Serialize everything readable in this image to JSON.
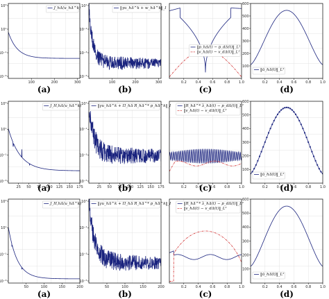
{
  "figure": {
    "row_labels": [
      [
        "(a)",
        "(b)",
        "(c)",
        "(d)"
      ],
      [
        "(a)",
        "(b)",
        "(c)",
        "(d)"
      ],
      [
        "(a)",
        "(b)",
        "(c)",
        "(d)"
      ]
    ]
  },
  "colors": {
    "primary": "#1a237e",
    "secondary": "#d32f2f",
    "frame": "#000000"
  },
  "chart_data": [
    {
      "type": "line",
      "row": 0,
      "col": 0,
      "log_y": true,
      "xlim": [
        0,
        310
      ],
      "ylim": [
        0.001,
        1000
      ],
      "xticks": [
        "100",
        "200",
        "300"
      ],
      "yticks": [
        "10³",
        "10¹",
        "10⁻¹",
        "10⁻³"
      ],
      "legend": [
        "J_hΔ(u_hΔ^k)"
      ],
      "legend_pos": "top-right",
      "series": [
        {
          "color": "primary",
          "style": "solid",
          "shape": "decay",
          "from": 5,
          "to": 0.04,
          "rate": 8,
          "noise": 0
        }
      ]
    },
    {
      "type": "line",
      "row": 0,
      "col": 1,
      "log_y": true,
      "xlim": [
        0,
        310
      ],
      "ylim": [
        1e-05,
        10
      ],
      "xticks": [
        "100",
        "200",
        "300"
      ],
      "yticks": [
        "10¹",
        "10⁻¹",
        "10⁻³",
        "10⁻⁵"
      ],
      "legend": [
        "‖γu_hΔ^k + w_hΔ^k‖_I"
      ],
      "legend_pos": "top-right",
      "series": [
        {
          "color": "primary",
          "style": "solid",
          "shape": "decay",
          "from": 3,
          "to": 0.00012,
          "rate": 18,
          "noise": 1.3
        }
      ]
    },
    {
      "type": "line",
      "row": 0,
      "col": 2,
      "xlim": [
        0,
        1
      ],
      "ylim": [
        0,
        1
      ],
      "xticks": [
        "0.2",
        "0.4",
        "0.6",
        "0.8",
        "1.0"
      ],
      "yticks": [],
      "legend": [
        "‖p_hΔ(t) − p_dΔ(t)‖_L²",
        "‖v_hΔ(t) − v_dΔ(t)‖_L²"
      ],
      "legend_pos": "center-right",
      "series": [
        {
          "color": "primary",
          "style": "solid",
          "shape": "vdip",
          "lo": 0.08,
          "hi": 0.94
        },
        {
          "color": "secondary",
          "style": "dashdot",
          "shape": "arch",
          "lo": 0.02,
          "hi": 0.38
        }
      ]
    },
    {
      "type": "line",
      "row": 0,
      "col": 3,
      "xlim": [
        0,
        1
      ],
      "ylim": [
        0,
        600
      ],
      "xticks": [
        "0.2",
        "0.4",
        "0.6",
        "0.8",
        "1.0"
      ],
      "yticks": [
        "100",
        "200",
        "300",
        "400",
        "500",
        "600"
      ],
      "legend": [
        "‖ū_hΔ(t)‖_L²"
      ],
      "legend_pos": "bottom-left",
      "series": [
        {
          "color": "primary",
          "style": "solid",
          "shape": "bell",
          "lo": 110,
          "hi": 545
        }
      ]
    },
    {
      "type": "line",
      "row": 1,
      "col": 0,
      "log_y": true,
      "xlim": [
        0,
        175
      ],
      "ylim": [
        0.001,
        1000
      ],
      "xticks": [
        "25",
        "50",
        "75",
        "100",
        "125",
        "150",
        "175"
      ],
      "yticks": [
        "10³",
        "10¹",
        "10⁻¹",
        "10⁻³"
      ],
      "legend": [
        "J_H,hΔ(u_hΔ^k)"
      ],
      "legend_pos": "top-right",
      "series": [
        {
          "color": "primary",
          "style": "solid",
          "shape": "decay",
          "from": 10,
          "to": 0.008,
          "rate": 6,
          "noise": 0,
          "spikes": [
            [
              12,
              0.5
            ],
            [
              33,
              0.3
            ],
            [
              52,
              0.02
            ]
          ]
        }
      ]
    },
    {
      "type": "line",
      "row": 1,
      "col": 1,
      "log_y": true,
      "xlim": [
        0,
        175
      ],
      "ylim": [
        1e-05,
        10
      ],
      "xticks": [
        "25",
        "50",
        "75",
        "100",
        "125",
        "150",
        "175"
      ],
      "yticks": [
        "10¹",
        "10⁻¹",
        "10⁻³",
        "10⁻⁵"
      ],
      "legend": [
        "‖γu_hΔ^k + Π_hΔ R_hΔ^* p_hΔ^k‖_I"
      ],
      "legend_pos": "top-right",
      "series": [
        {
          "color": "primary",
          "style": "solid",
          "shape": "decay",
          "from": 3,
          "to": 0.0007,
          "rate": 14,
          "noise": 1.6
        }
      ]
    },
    {
      "type": "line",
      "row": 1,
      "col": 2,
      "xlim": [
        0,
        1
      ],
      "ylim": [
        0,
        1
      ],
      "xticks": [
        "0.2",
        "0.4",
        "0.6",
        "0.8",
        "1.0"
      ],
      "yticks": [],
      "legend": [
        "‖R_hΔ^* λ_hΔ(t) − p_dΔ(t)‖_L²",
        "‖v_hΔ(t) − v_dΔ(t)‖_L²"
      ],
      "legend_pos": "top-right",
      "series": [
        {
          "color": "primary",
          "style": "solid",
          "shape": "oscillating",
          "lo": 0.18,
          "hi": 0.46
        },
        {
          "color": "secondary",
          "style": "dashdot",
          "shape": "flat",
          "lo": 0.2,
          "hi": 0.3
        }
      ]
    },
    {
      "type": "line",
      "row": 1,
      "col": 3,
      "xlim": [
        0,
        1
      ],
      "ylim": [
        0,
        600
      ],
      "xticks": [
        "0.2",
        "0.4",
        "0.6",
        "0.8",
        "1.0"
      ],
      "yticks": [
        "100",
        "200",
        "300",
        "400",
        "500",
        "600"
      ],
      "legend": [
        "‖ū_hΔ(t)‖_L²"
      ],
      "legend_pos": "bottom-left",
      "series": [
        {
          "color": "primary",
          "style": "solid",
          "shape": "bell",
          "lo": 70,
          "hi": 555,
          "markers": true
        }
      ]
    },
    {
      "type": "line",
      "row": 2,
      "col": 0,
      "log_y": true,
      "xlim": [
        0,
        200
      ],
      "ylim": [
        0.001,
        1000
      ],
      "xticks": [
        "50",
        "100",
        "150",
        "200"
      ],
      "yticks": [
        "10³",
        "10¹",
        "10⁻¹",
        "10⁻³"
      ],
      "legend": [
        "J_H,hΔ(u_hΔ^k)"
      ],
      "legend_pos": "top-right",
      "series": [
        {
          "color": "primary",
          "style": "solid",
          "shape": "decay",
          "from": 10,
          "to": 0.002,
          "rate": 8,
          "noise": 0,
          "spikes": [
            [
              10,
              0.4
            ],
            [
              38,
              0.01
            ]
          ]
        }
      ]
    },
    {
      "type": "line",
      "row": 2,
      "col": 1,
      "log_y": true,
      "xlim": [
        0,
        200
      ],
      "ylim": [
        1e-05,
        10
      ],
      "xticks": [
        "50",
        "100",
        "150",
        "200"
      ],
      "yticks": [
        "10¹",
        "10⁻¹",
        "10⁻³",
        "10⁻⁵"
      ],
      "legend": [
        "‖γu_hΔ^k + Π_hΔ R_hΔ^* p_hΔ^k‖_I"
      ],
      "legend_pos": "top-right",
      "series": [
        {
          "color": "primary",
          "style": "solid",
          "shape": "decay",
          "from": 3,
          "to": 0.0002,
          "rate": 12,
          "noise": 1.5
        }
      ]
    },
    {
      "type": "line",
      "row": 2,
      "col": 2,
      "xlim": [
        0,
        1
      ],
      "ylim": [
        0,
        1
      ],
      "xticks": [
        "0.2",
        "0.4",
        "0.6",
        "0.8",
        "1.0"
      ],
      "yticks": [],
      "legend": [
        "‖R_hΔ^* λ_hΔ(t) − p_dΔ(t)‖_L²",
        "‖v_hΔ(t) − v_dΔ(t)‖_L²"
      ],
      "legend_pos": "top-right",
      "series": [
        {
          "color": "primary",
          "style": "solid",
          "shape": "wavy",
          "lo": 0.28,
          "hi": 0.38
        },
        {
          "color": "secondary",
          "style": "dashdot",
          "shape": "rise",
          "lo": 0.0,
          "hi": 0.62
        }
      ]
    },
    {
      "type": "line",
      "row": 2,
      "col": 3,
      "xlim": [
        0,
        1
      ],
      "ylim": [
        0,
        600
      ],
      "xticks": [
        "0.2",
        "0.4",
        "0.6",
        "0.8",
        "1.0"
      ],
      "yticks": [
        "100",
        "200",
        "300",
        "400",
        "500",
        "600"
      ],
      "legend": [
        "‖ū_hΔ(t)‖_L²"
      ],
      "legend_pos": "bottom-left",
      "series": [
        {
          "color": "primary",
          "style": "solid",
          "shape": "bell",
          "lo": 120,
          "hi": 550
        }
      ]
    }
  ]
}
